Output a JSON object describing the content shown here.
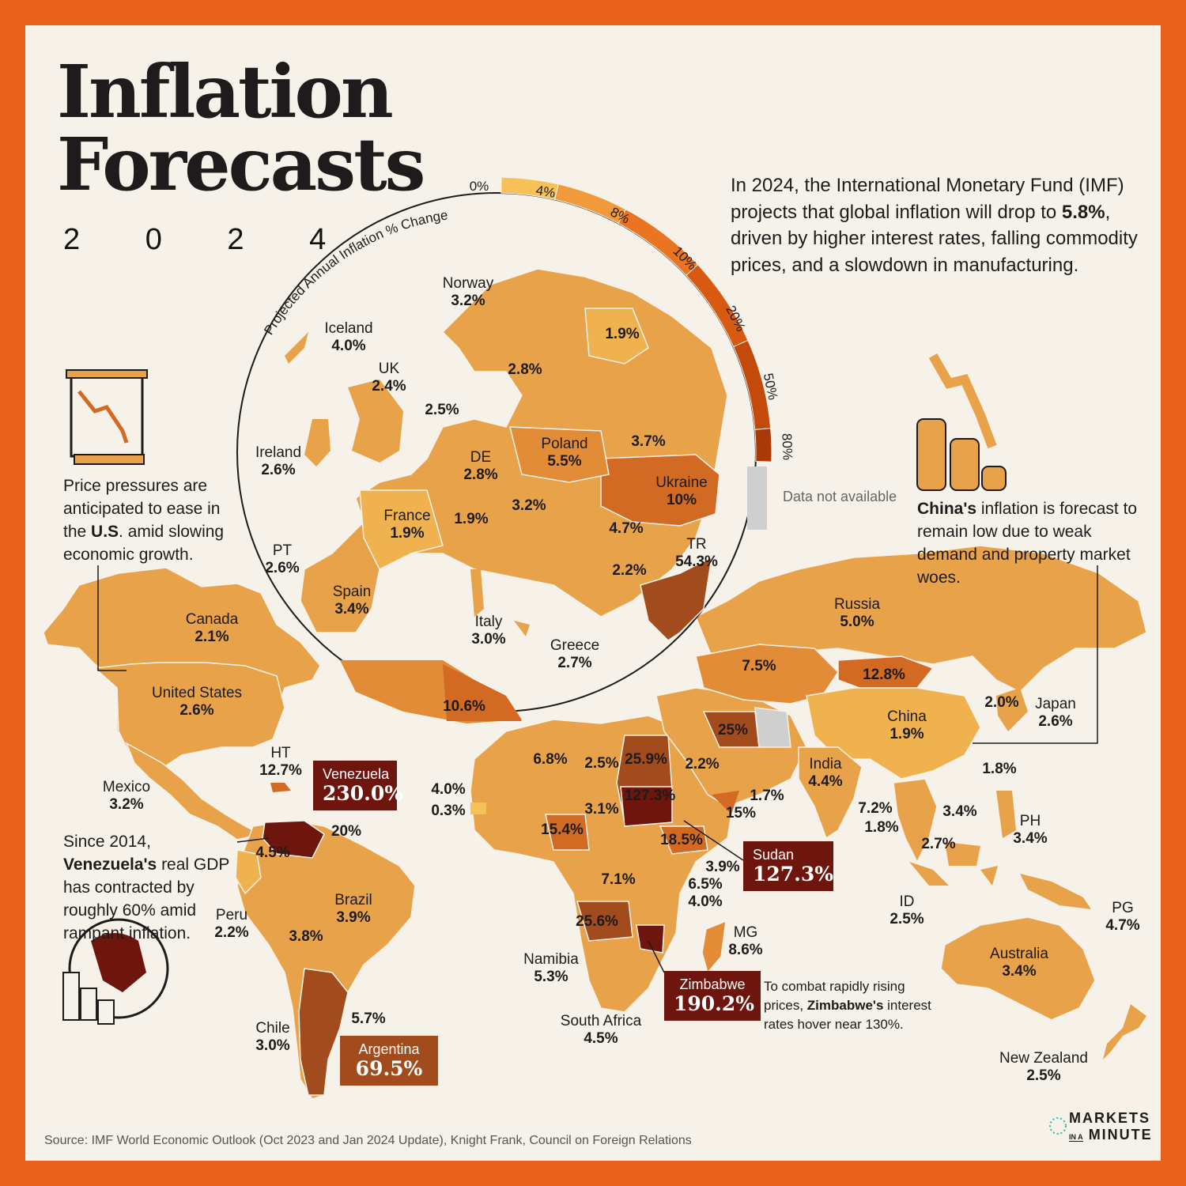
{
  "title": {
    "line1": "Inflation",
    "line2": "Forecasts",
    "year": "2 0 2 4"
  },
  "intro": {
    "text_before": "In 2024, the International Monetary Fund (IMF) projects that global inflation will drop to ",
    "highlight": "5.8%",
    "text_after": ", driven by higher interest rates, falling commodity prices, and a slowdown in manufacturing."
  },
  "legend": {
    "title": "Projected Annual Inflation % Change",
    "ticks": [
      "0%",
      "4%",
      "8%",
      "10%",
      "20%",
      "50%",
      "80%"
    ],
    "colors": [
      "#f6c257",
      "#f09a3c",
      "#ea7420",
      "#d85a10",
      "#c44a0c",
      "#a93a08"
    ],
    "na_label": "Data not available",
    "na_color": "#cfcfcf"
  },
  "colors": {
    "background": "#f6f2ea",
    "frame": "#e8621c",
    "land_low": "#e8a24a",
    "land_mid": "#e38c37",
    "land_high": "#d26a24",
    "land_very_high": "#a24b1c",
    "land_extreme": "#6e160e"
  },
  "notes": {
    "us": {
      "before": "Price pressures are anticipated to ease in the ",
      "bold": "U.S",
      "after": ". amid slowing economic growth."
    },
    "china": {
      "bold": "China's",
      "after": " inflation is forecast to remain low due to weak demand and property market woes."
    },
    "venezuela": {
      "before": "Since 2014, ",
      "bold": "Venezuela's",
      "after": " real GDP has contracted by roughly 60% amid rampant inflation."
    },
    "zimbabwe": {
      "before": "To combat rapidly rising prices, ",
      "bold": "Zimbabwe's",
      "after": " interest rates hover near 130%."
    }
  },
  "highlights": [
    {
      "name": "Venezuela",
      "value": "230.0%",
      "color": "#6e160e"
    },
    {
      "name": "Sudan",
      "value": "127.3%",
      "color": "#6e160e"
    },
    {
      "name": "Zimbabwe",
      "value": "190.2%",
      "color": "#6e160e"
    },
    {
      "name": "Argentina",
      "value": "69.5%",
      "color": "#a24b1c"
    }
  ],
  "labels": [
    {
      "name": "Norway",
      "value": "3.2%"
    },
    {
      "name": "Iceland",
      "value": "4.0%"
    },
    {
      "name": "UK",
      "value": "2.4%"
    },
    {
      "name": "Ireland",
      "value": "2.6%"
    },
    {
      "name": "DE",
      "value": "2.8%"
    },
    {
      "name": "Poland",
      "value": "5.5%"
    },
    {
      "name": "Ukraine",
      "value": "10%"
    },
    {
      "name": "France",
      "value": "1.9%"
    },
    {
      "name": "PT",
      "value": "2.6%"
    },
    {
      "name": "Spain",
      "value": "3.4%"
    },
    {
      "name": "Italy",
      "value": "3.0%"
    },
    {
      "name": "Greece",
      "value": "2.7%"
    },
    {
      "name": "TR",
      "value": "54.3%"
    },
    {
      "name": "Canada",
      "value": "2.1%"
    },
    {
      "name": "United States",
      "value": "2.6%"
    },
    {
      "name": "Mexico",
      "value": "3.2%"
    },
    {
      "name": "HT",
      "value": "12.7%"
    },
    {
      "name": "Brazil",
      "value": "3.9%"
    },
    {
      "name": "Peru",
      "value": "2.2%"
    },
    {
      "name": "Chile",
      "value": "3.0%"
    },
    {
      "name": "Russia",
      "value": "5.0%"
    },
    {
      "name": "China",
      "value": "1.9%"
    },
    {
      "name": "Japan",
      "value": "2.6%"
    },
    {
      "name": "India",
      "value": "4.4%"
    },
    {
      "name": "PH",
      "value": "3.4%"
    },
    {
      "name": "ID",
      "value": "2.5%"
    },
    {
      "name": "PG",
      "value": "4.7%"
    },
    {
      "name": "Australia",
      "value": "3.4%"
    },
    {
      "name": "New Zealand",
      "value": "2.5%"
    },
    {
      "name": "MG",
      "value": "8.6%"
    },
    {
      "name": "Namibia",
      "value": "5.3%"
    },
    {
      "name": "South Africa",
      "value": "4.5%"
    }
  ],
  "values": [
    "1.9%",
    "2.8%",
    "2.5%",
    "3.7%",
    "3.2%",
    "1.9%",
    "4.7%",
    "2.2%",
    "10.6%",
    "7.5%",
    "12.8%",
    "25%",
    "2.0%",
    "2.2%",
    "1.7%",
    "15%",
    "1.8%",
    "7.2%",
    "1.8%",
    "3.4%",
    "2.7%",
    "6.8%",
    "2.5%",
    "25.9%",
    "127.3%",
    "4.0%",
    "0.3%",
    "3.1%",
    "15.4%",
    "18.5%",
    "3.9%",
    "6.5%",
    "4.0%",
    "7.1%",
    "25.6%",
    "20%",
    "4.5%",
    "3.8%",
    "5.7%"
  ],
  "source": "Source: IMF World Economic Outlook (Oct 2023 and Jan 2024 Update), Knight Frank, Council on Foreign Relations",
  "logo": {
    "line1": "MARKETS",
    "line2a": "IN A",
    "line2b": "MINUTE"
  }
}
